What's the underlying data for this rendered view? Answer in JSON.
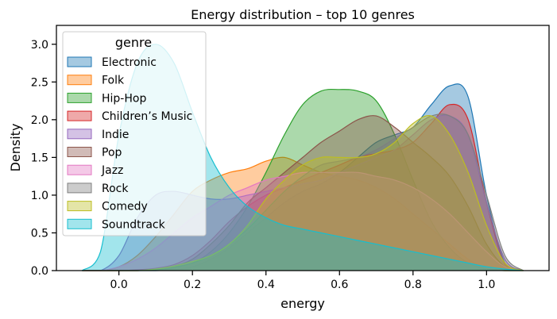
{
  "chart_data": {
    "type": "area",
    "title": "Energy distribution – top 10 genres",
    "xlabel": "energy",
    "ylabel": "Density",
    "xlim": [
      -0.17,
      1.17
    ],
    "ylim": [
      0,
      3.25
    ],
    "xticks": [
      0.0,
      0.2,
      0.4,
      0.6,
      0.8,
      1.0
    ],
    "xtick_labels": [
      "0.0",
      "0.2",
      "0.4",
      "0.6",
      "0.8",
      "1.0"
    ],
    "yticks": [
      0.0,
      0.5,
      1.0,
      1.5,
      2.0,
      2.5,
      3.0
    ],
    "ytick_labels": [
      "0.0",
      "0.5",
      "1.0",
      "1.5",
      "2.0",
      "2.5",
      "3.0"
    ],
    "grid": false,
    "legend": {
      "title": "genre",
      "placement": "top-left"
    },
    "x": [
      -0.1,
      -0.05,
      0.0,
      0.05,
      0.1,
      0.15,
      0.2,
      0.25,
      0.3,
      0.35,
      0.4,
      0.45,
      0.5,
      0.55,
      0.6,
      0.65,
      0.7,
      0.75,
      0.8,
      0.85,
      0.9,
      0.95,
      1.0,
      1.05,
      1.1
    ],
    "series": [
      {
        "name": "Electronic",
        "color": "#1f77b4",
        "values": [
          0,
          0,
          0,
          0,
          0,
          0.01,
          0.05,
          0.15,
          0.3,
          0.5,
          0.7,
          0.9,
          1.05,
          1.15,
          1.3,
          1.5,
          1.7,
          1.8,
          1.9,
          2.2,
          2.45,
          2.3,
          1.0,
          0.1,
          0
        ]
      },
      {
        "name": "Folk",
        "color": "#ff7f0e",
        "values": [
          0,
          0,
          0.05,
          0.2,
          0.45,
          0.75,
          1.05,
          1.2,
          1.3,
          1.35,
          1.45,
          1.5,
          1.4,
          1.3,
          1.25,
          1.2,
          1.1,
          0.95,
          0.75,
          0.55,
          0.35,
          0.15,
          0.03,
          0,
          0
        ]
      },
      {
        "name": "Hip-Hop",
        "color": "#2ca02c",
        "values": [
          0,
          0,
          0,
          0,
          0.01,
          0.05,
          0.1,
          0.25,
          0.5,
          0.85,
          1.3,
          1.8,
          2.2,
          2.38,
          2.4,
          2.38,
          2.25,
          1.8,
          1.2,
          0.65,
          0.3,
          0.1,
          0.02,
          0,
          0
        ]
      },
      {
        "name": "Children’s Music",
        "color": "#d62728",
        "values": [
          0,
          0,
          0,
          0.01,
          0.03,
          0.08,
          0.2,
          0.4,
          0.65,
          0.85,
          1.0,
          1.1,
          1.2,
          1.3,
          1.4,
          1.5,
          1.55,
          1.6,
          1.7,
          1.95,
          2.2,
          2.0,
          0.9,
          0.08,
          0
        ]
      },
      {
        "name": "Indie",
        "color": "#9467bd",
        "values": [
          0,
          0,
          0.2,
          0.7,
          1.0,
          1.05,
          1.0,
          0.95,
          0.95,
          1.0,
          1.05,
          1.1,
          1.15,
          1.2,
          1.3,
          1.4,
          1.5,
          1.6,
          1.8,
          2.0,
          2.05,
          1.8,
          0.9,
          0.15,
          0
        ]
      },
      {
        "name": "Pop",
        "color": "#8c564b",
        "values": [
          0,
          0,
          0,
          0,
          0.02,
          0.06,
          0.15,
          0.35,
          0.6,
          0.9,
          1.1,
          1.3,
          1.5,
          1.7,
          1.85,
          2.0,
          2.05,
          1.9,
          1.7,
          1.5,
          1.25,
          0.85,
          0.35,
          0.05,
          0
        ]
      },
      {
        "name": "Jazz",
        "color": "#e377c2",
        "values": [
          0,
          0,
          0.05,
          0.15,
          0.3,
          0.5,
          0.7,
          0.85,
          1.0,
          1.1,
          1.2,
          1.25,
          1.3,
          1.3,
          1.3,
          1.3,
          1.25,
          1.2,
          1.1,
          0.95,
          0.75,
          0.5,
          0.25,
          0.05,
          0
        ]
      },
      {
        "name": "Rock",
        "color": "#7f7f7f",
        "values": [
          0,
          0,
          0,
          0,
          0.01,
          0.04,
          0.1,
          0.2,
          0.35,
          0.55,
          0.8,
          1.05,
          1.25,
          1.4,
          1.45,
          1.5,
          1.6,
          1.75,
          1.9,
          2.05,
          2.05,
          1.8,
          1.0,
          0.2,
          0
        ]
      },
      {
        "name": "Comedy",
        "color": "#bcbd22",
        "values": [
          0,
          0,
          0,
          0,
          0.02,
          0.06,
          0.12,
          0.2,
          0.35,
          0.6,
          0.95,
          1.2,
          1.4,
          1.5,
          1.5,
          1.5,
          1.55,
          1.7,
          1.95,
          2.05,
          1.8,
          1.3,
          0.6,
          0.1,
          0
        ]
      },
      {
        "name": "Soundtrack",
        "color": "#17becf",
        "values": [
          0,
          0.25,
          1.8,
          2.75,
          3.0,
          2.75,
          2.1,
          1.5,
          1.1,
          0.85,
          0.7,
          0.6,
          0.55,
          0.5,
          0.45,
          0.4,
          0.35,
          0.3,
          0.25,
          0.2,
          0.15,
          0.1,
          0.05,
          0.02,
          0
        ]
      }
    ]
  }
}
